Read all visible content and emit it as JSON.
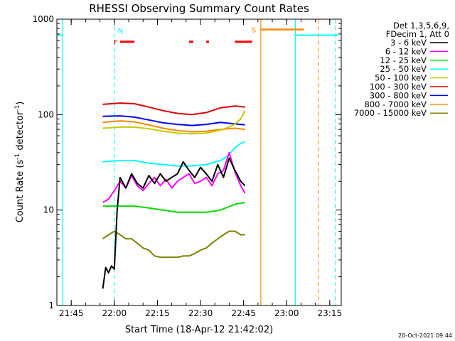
{
  "chart_data": {
    "type": "line",
    "title": "RHESSI Observing Summary Count Rates",
    "xlabel": "Start Time (18-Apr-12 21:42:02)",
    "ylabel_main": "Count Rate (s",
    "ylabel_sup1": "-1",
    "ylabel_mid": " detector",
    "ylabel_sup2": "-1",
    "ylabel_end": ")",
    "yscale": "log",
    "ylim": [
      1,
      1000
    ],
    "y_ticks": [
      1,
      10,
      100,
      1000
    ],
    "y_tick_labels": [
      "1",
      "10",
      "100",
      "1000"
    ],
    "xlim_minutes": [
      -2,
      97
    ],
    "x_ticks_minutes": [
      3,
      18,
      33,
      48,
      63,
      78,
      93
    ],
    "x_tick_labels": [
      "21:45",
      "22:00",
      "22:15",
      "22:30",
      "22:45",
      "23:00",
      "23:15"
    ],
    "timestamp": "20-Oct-2021 09:44",
    "legend": {
      "position": "right",
      "header": [
        "Det 1,3,5,6,9,",
        "FDecim 1, Att 0"
      ],
      "entries": [
        {
          "label": "3 - 6 keV",
          "color": "#000000"
        },
        {
          "label": "6 - 12 keV",
          "color": "#ff00ff"
        },
        {
          "label": "12 - 25 keV",
          "color": "#00dd00"
        },
        {
          "label": "25 - 50 keV",
          "color": "#00ffff"
        },
        {
          "label": "50 - 100 keV",
          "color": "#c8c800"
        },
        {
          "label": "100 - 300 keV",
          "color": "#dd0000"
        },
        {
          "label": "300 - 800 keV",
          "color": "#0000ff"
        },
        {
          "label": "800 - 7000 keV",
          "color": "#ff8800"
        },
        {
          "label": "7000 - 15000 keV",
          "color": "#808000"
        }
      ]
    },
    "series": [
      {
        "name": "3 - 6 keV",
        "color": "#000000",
        "x": [
          14,
          15,
          16,
          17,
          18,
          19,
          20,
          22,
          24,
          26,
          28,
          30,
          32,
          34,
          36,
          38,
          40,
          42,
          44,
          46,
          48,
          50,
          52,
          54,
          56,
          58,
          60,
          62,
          63.5
        ],
        "y": [
          1.5,
          2.5,
          2.2,
          2.6,
          2.4,
          10,
          22,
          17,
          24,
          19,
          17,
          23,
          19,
          24,
          20,
          22,
          24,
          32,
          26,
          22,
          28,
          24,
          20,
          30,
          22,
          35,
          26,
          20,
          18
        ]
      },
      {
        "name": "6 - 12 keV",
        "color": "#ff00ff",
        "x": [
          14,
          16,
          18,
          20,
          22,
          24,
          26,
          28,
          30,
          32,
          34,
          36,
          38,
          40,
          42,
          44,
          46,
          48,
          50,
          52,
          54,
          56,
          58,
          60,
          62,
          63.5
        ],
        "y": [
          12,
          13,
          16,
          20,
          17,
          23,
          18,
          16,
          19,
          22,
          18,
          21,
          17,
          20,
          22,
          24,
          19,
          20,
          22,
          18,
          24,
          26,
          40,
          25,
          18,
          15
        ]
      },
      {
        "name": "12 - 25 keV",
        "color": "#00dd00",
        "x": [
          14,
          20,
          25,
          30,
          35,
          40,
          45,
          50,
          55,
          60,
          63.5
        ],
        "y": [
          11,
          11,
          11,
          10.5,
          10,
          9.5,
          9.5,
          9.5,
          10,
          11.5,
          12
        ]
      },
      {
        "name": "25 - 50 keV",
        "color": "#00ffff",
        "x": [
          14,
          20,
          25,
          30,
          35,
          40,
          45,
          50,
          55,
          58,
          60,
          62,
          63.5
        ],
        "y": [
          32,
          33,
          33,
          31,
          30,
          29,
          29,
          30,
          33,
          38,
          45,
          50,
          52
        ]
      },
      {
        "name": "50 - 100 keV",
        "color": "#c8c800",
        "x": [
          14,
          20,
          25,
          30,
          35,
          40,
          45,
          50,
          55,
          58,
          60,
          62,
          63.5
        ],
        "y": [
          72,
          74,
          74,
          71,
          67,
          64,
          63,
          64,
          69,
          74,
          80,
          90,
          110
        ]
      },
      {
        "name": "100 - 300 keV",
        "color": "#dd0000",
        "x": [
          14,
          20,
          25,
          30,
          35,
          40,
          45,
          50,
          55,
          60,
          63.5
        ],
        "y": [
          128,
          132,
          130,
          120,
          110,
          103,
          100,
          105,
          118,
          123,
          120
        ]
      },
      {
        "name": "300 - 800 keV",
        "color": "#0000ff",
        "x": [
          14,
          20,
          25,
          30,
          35,
          40,
          45,
          50,
          55,
          60,
          63.5
        ],
        "y": [
          96,
          97,
          94,
          88,
          82,
          79,
          77,
          79,
          83,
          80,
          78
        ]
      },
      {
        "name": "800 - 7000 keV",
        "color": "#ff8800",
        "x": [
          14,
          20,
          25,
          30,
          35,
          40,
          45,
          50,
          55,
          60,
          63.5
        ],
        "y": [
          83,
          86,
          84,
          78,
          72,
          68,
          66,
          67,
          70,
          72,
          70
        ]
      },
      {
        "name": "7000 - 15000 keV",
        "color": "#808000",
        "x": [
          14,
          16,
          18,
          20,
          22,
          24,
          26,
          28,
          30,
          32,
          34,
          36,
          38,
          40,
          42,
          44,
          46,
          48,
          50,
          52,
          54,
          56,
          58,
          60,
          62,
          63.5
        ],
        "y": [
          5,
          5.5,
          6,
          5.5,
          5,
          5,
          4.5,
          4,
          3.8,
          3.3,
          3.2,
          3.2,
          3.2,
          3.2,
          3.3,
          3.3,
          3.5,
          3.8,
          4,
          4.5,
          5,
          5.5,
          6,
          6,
          5.5,
          5.5
        ]
      }
    ],
    "orbit_markers": {
      "night_color": "#00ffff",
      "saa_color": "#ff8800",
      "flare_color": "#ff0000",
      "flare_label": "F",
      "night_label": "N",
      "saa_label": "S",
      "night_level": 680,
      "saa_level": 780,
      "flare_level": 580,
      "night_segments": [
        [
          -2,
          0
        ],
        [
          81,
          96
        ]
      ],
      "night_solid_lines": [
        0,
        81
      ],
      "night_dashed_lines": [
        18,
        95
      ],
      "saa_segment": [
        69,
        84
      ],
      "saa_solid_line": 69,
      "saa_dashed_line": 89,
      "flare_segments": [
        [
          20,
          25
        ],
        [
          44,
          45.5
        ],
        [
          50,
          51
        ],
        [
          60,
          66
        ]
      ]
    }
  }
}
